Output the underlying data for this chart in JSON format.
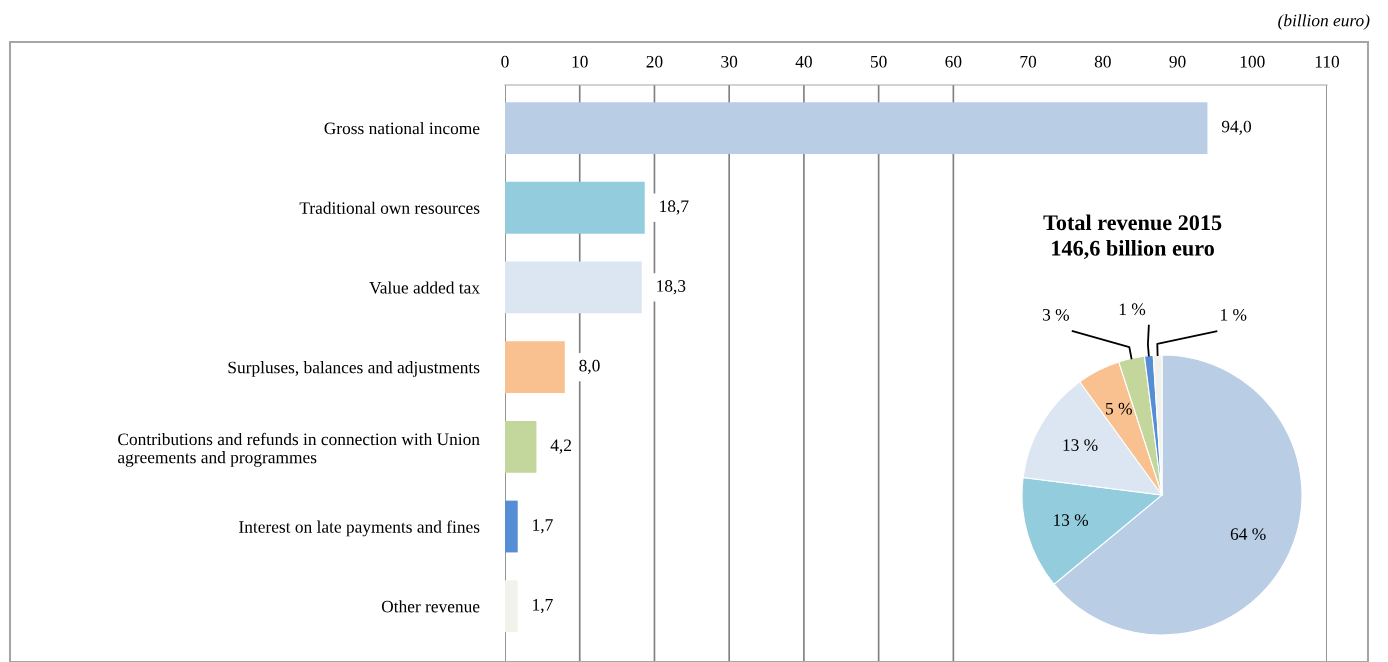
{
  "chart_data": [
    {
      "type": "bar",
      "orientation": "horizontal",
      "categories": [
        "Gross national income",
        "Traditional own resources",
        "Value added tax",
        "Surpluses, balances and adjustments",
        "Contributions and refunds in connection with Union\nagreements and programmes",
        "Interest on late payments and fines",
        "Other revenue"
      ],
      "values": [
        94.0,
        18.7,
        18.3,
        8.0,
        4.2,
        1.7,
        1.7
      ],
      "value_labels": [
        "94,0",
        "18,7",
        "18,3",
        "8,0",
        "4,2",
        "1,7",
        "1,7"
      ],
      "colors": [
        "#b9cde5",
        "#93cddd",
        "#dce6f2",
        "#f8c18f",
        "#c3d69b",
        "#558ed5",
        "#f2f2ec"
      ],
      "xlim": [
        0,
        110
      ],
      "xticks": [
        0,
        10,
        20,
        30,
        40,
        50,
        60,
        70,
        80,
        90,
        100,
        110
      ],
      "grid": "x",
      "legend": false,
      "annotations": [
        "(billion euro)"
      ]
    },
    {
      "type": "pie",
      "title": "Total revenue 2015\n146,6 billion euro",
      "categories": [
        null,
        null,
        null,
        null,
        null,
        null,
        null
      ],
      "values": [
        64,
        13,
        13,
        5,
        3,
        1,
        1
      ],
      "value_labels": [
        "64 %",
        "13 %",
        "13 %",
        "5 %",
        "3 %",
        "1 %",
        "1 %"
      ],
      "colors": [
        "#b9cde5",
        "#93cddd",
        "#dce6f2",
        "#f8c18f",
        "#c3d69b",
        "#558ed5",
        "#f2f2ec"
      ],
      "legend": false
    }
  ]
}
